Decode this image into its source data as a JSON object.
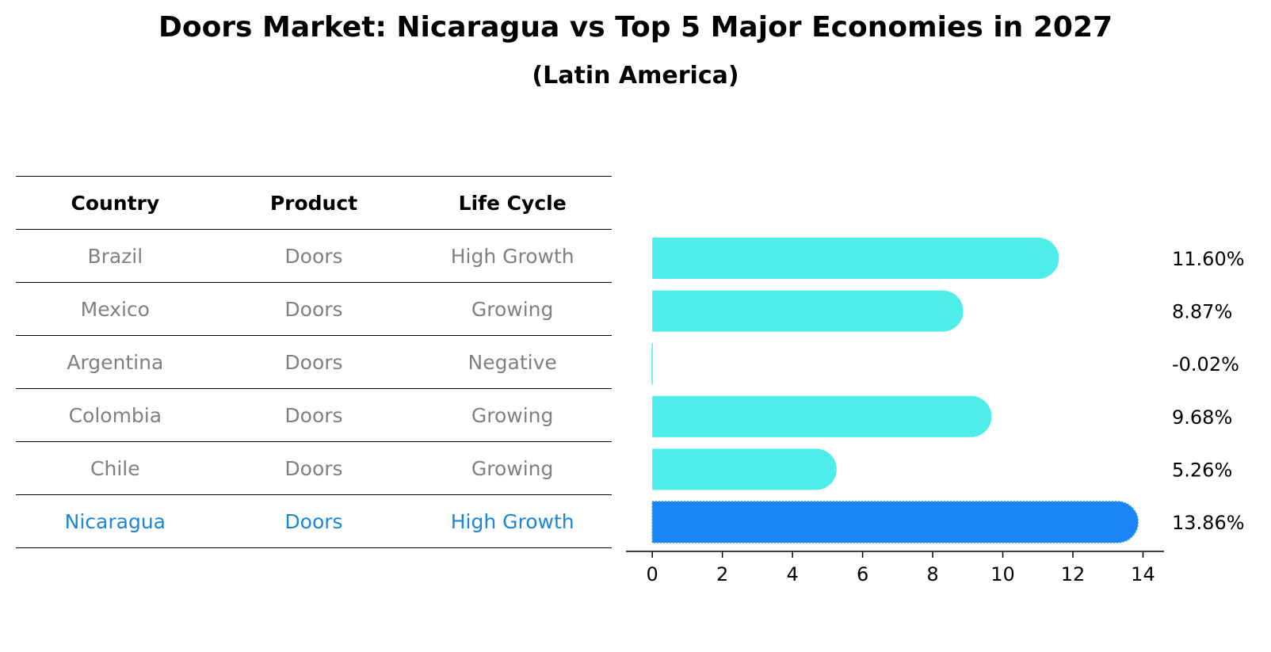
{
  "title": "Doors Market: Nicaragua vs Top 5 Major Economies in 2027",
  "subtitle": "(Latin America)",
  "table": {
    "headers": [
      "Country",
      "Product",
      "Life Cycle"
    ],
    "rows": [
      [
        "Brazil",
        "Doors",
        "High Growth"
      ],
      [
        "Mexico",
        "Doors",
        "Growing"
      ],
      [
        "Argentina",
        "Doors",
        "Negative"
      ],
      [
        "Colombia",
        "Doors",
        "Growing"
      ],
      [
        "Chile",
        "Doors",
        "Growing"
      ],
      [
        "Nicaragua",
        "Doors",
        "High Growth"
      ]
    ],
    "highlight_row": 5
  },
  "chart_data": {
    "type": "bar",
    "orientation": "horizontal",
    "categories": [
      "Brazil",
      "Mexico",
      "Argentina",
      "Colombia",
      "Chile",
      "Nicaragua"
    ],
    "values": [
      11.6,
      8.87,
      -0.02,
      9.68,
      5.26,
      13.86
    ],
    "value_labels": [
      "11.60%",
      "8.87%",
      "-0.02%",
      "9.68%",
      "5.26%",
      "13.86%"
    ],
    "xlim": [
      -0.75,
      14.6
    ],
    "xticks": [
      0,
      2,
      4,
      6,
      8,
      10,
      12,
      14
    ],
    "xtick_labels": [
      "0",
      "2",
      "4",
      "6",
      "8",
      "10",
      "12",
      "14"
    ],
    "highlight_index": 5,
    "colors": {
      "bar": "#4deeea",
      "highlight": "#1a86f5"
    },
    "grid": false,
    "legend": "none"
  }
}
